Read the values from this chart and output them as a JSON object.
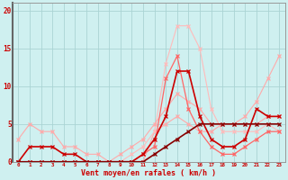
{
  "bg_color": "#cff0f0",
  "grid_color": "#aad4d4",
  "xlabel": "Vent moyen/en rafales ( km/h )",
  "xlabel_color": "#cc0000",
  "ylabel_ticks": [
    0,
    5,
    10,
    15,
    20
  ],
  "xlim": [
    -0.5,
    23.5
  ],
  "ylim": [
    0,
    21
  ],
  "x_ticks": [
    0,
    1,
    2,
    3,
    4,
    5,
    6,
    7,
    8,
    9,
    10,
    11,
    12,
    13,
    14,
    15,
    16,
    17,
    18,
    19,
    20,
    21,
    22,
    23
  ],
  "series": [
    {
      "x": [
        0,
        1,
        2,
        3,
        4,
        5,
        6,
        7,
        8,
        9,
        10,
        11,
        12,
        13,
        14,
        15,
        16,
        17,
        18,
        19,
        20,
        21,
        22,
        23
      ],
      "y": [
        3,
        5,
        4,
        4,
        2,
        2,
        1,
        1,
        0,
        0,
        0,
        0,
        4,
        5,
        6,
        5,
        4,
        4,
        5,
        5,
        5,
        5,
        6,
        6
      ],
      "color": "#ffaaaa",
      "marker": "x",
      "lw": 0.8,
      "ms": 3
    },
    {
      "x": [
        0,
        1,
        2,
        3,
        4,
        5,
        6,
        7,
        8,
        9,
        10,
        11,
        12,
        13,
        14,
        15,
        16,
        17,
        18,
        19,
        20,
        21,
        22,
        23
      ],
      "y": [
        0,
        0,
        0,
        0,
        0,
        0,
        0,
        0,
        0,
        0,
        1,
        2,
        4,
        13,
        18,
        18,
        15,
        7,
        4,
        4,
        4,
        4,
        5,
        4
      ],
      "color": "#ffbbbb",
      "marker": "x",
      "lw": 0.8,
      "ms": 3
    },
    {
      "x": [
        0,
        1,
        2,
        3,
        4,
        5,
        6,
        7,
        8,
        9,
        10,
        11,
        12,
        13,
        14,
        15,
        16,
        17,
        18,
        19,
        20,
        21,
        22,
        23
      ],
      "y": [
        0,
        0,
        0,
        0,
        0,
        0,
        0,
        0,
        0,
        1,
        2,
        3,
        5,
        7,
        9,
        8,
        7,
        5,
        5,
        5,
        6,
        8,
        11,
        14
      ],
      "color": "#ffaaaa",
      "marker": "x",
      "lw": 0.8,
      "ms": 3
    },
    {
      "x": [
        0,
        1,
        2,
        3,
        4,
        5,
        6,
        7,
        8,
        9,
        10,
        11,
        12,
        13,
        14,
        15,
        16,
        17,
        18,
        19,
        20,
        21,
        22,
        23
      ],
      "y": [
        0,
        0,
        0,
        0,
        0,
        0,
        0,
        0,
        0,
        0,
        0,
        1,
        2,
        11,
        14,
        7,
        4,
        2,
        1,
        1,
        2,
        3,
        4,
        4
      ],
      "color": "#ff6666",
      "marker": "x",
      "lw": 0.9,
      "ms": 3
    },
    {
      "x": [
        0,
        1,
        2,
        3,
        4,
        5,
        6,
        7,
        8,
        9,
        10,
        11,
        12,
        13,
        14,
        15,
        16,
        17,
        18,
        19,
        20,
        21,
        22,
        23
      ],
      "y": [
        0,
        2,
        2,
        2,
        1,
        1,
        0,
        0,
        0,
        0,
        0,
        1,
        3,
        6,
        12,
        12,
        6,
        3,
        2,
        2,
        3,
        7,
        6,
        6
      ],
      "color": "#cc0000",
      "marker": "x",
      "lw": 1.2,
      "ms": 3
    },
    {
      "x": [
        0,
        1,
        2,
        3,
        4,
        5,
        6,
        7,
        8,
        9,
        10,
        11,
        12,
        13,
        14,
        15,
        16,
        17,
        18,
        19,
        20,
        21,
        22,
        23
      ],
      "y": [
        0,
        0,
        0,
        0,
        0,
        0,
        0,
        0,
        0,
        0,
        0,
        0,
        1,
        2,
        3,
        4,
        5,
        5,
        5,
        5,
        5,
        5,
        5,
        5
      ],
      "color": "#880000",
      "marker": "x",
      "lw": 1.2,
      "ms": 3
    }
  ],
  "tick_label_color": "#cc0000",
  "left_spine_color": "#666666"
}
